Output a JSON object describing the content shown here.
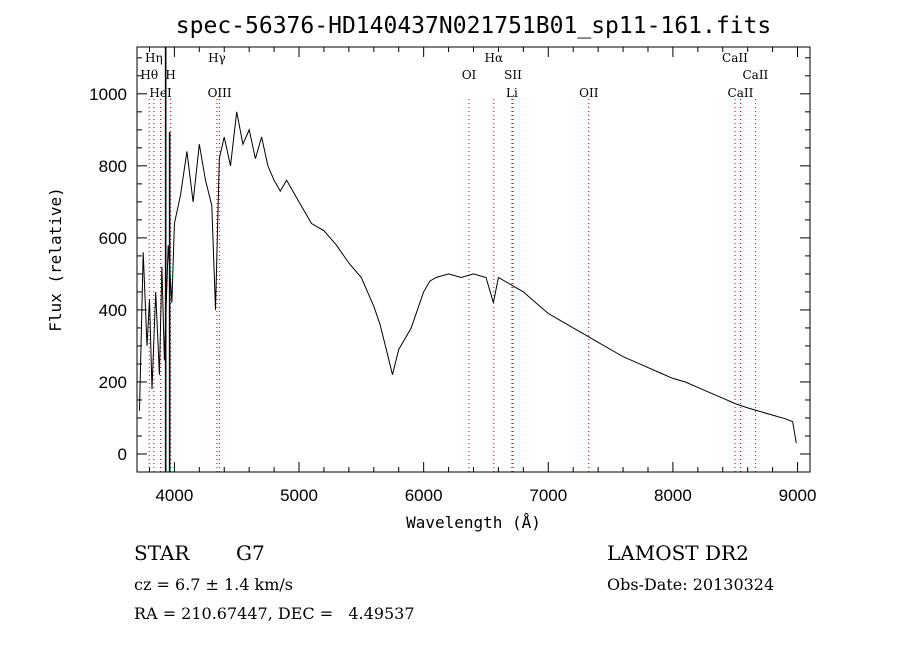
{
  "chart_data": {
    "type": "line",
    "title": "spec-56376-HD140437N021751B01_sp11-161.fits",
    "xlabel": "Wavelength (Å)",
    "ylabel": "Flux (relative)",
    "xlim": [
      3700,
      9100
    ],
    "ylim": [
      -50,
      1130
    ],
    "xticks": [
      4000,
      5000,
      6000,
      7000,
      8000,
      9000
    ],
    "yticks": [
      0,
      200,
      400,
      600,
      800,
      1000
    ],
    "grid": false,
    "spectral_lines": [
      {
        "label": "Hη",
        "wavelength": 3835,
        "row": 0
      },
      {
        "label": "Hθ",
        "wavelength": 3798,
        "row": 1
      },
      {
        "label": "HeI",
        "wavelength": 3889,
        "row": 2
      },
      {
        "label": "H",
        "wavelength": 3970,
        "row": 1
      },
      {
        "label": "Hγ",
        "wavelength": 4341,
        "row": 0
      },
      {
        "label": "OIII",
        "wavelength": 4363,
        "row": 2
      },
      {
        "label": "Hα",
        "wavelength": 6563,
        "row": 0
      },
      {
        "label": "OI",
        "wavelength": 6364,
        "row": 1
      },
      {
        "label": "SII",
        "wavelength": 6717,
        "row": 1
      },
      {
        "label": "Li",
        "wavelength": 6708,
        "row": 2
      },
      {
        "label": "OII",
        "wavelength": 7325,
        "row": 2
      },
      {
        "label": "CaII",
        "wavelength": 8498,
        "row": 0
      },
      {
        "label": "CaII",
        "wavelength": 8662,
        "row": 1
      },
      {
        "label": "CaII",
        "wavelength": 8542,
        "row": 2
      }
    ],
    "series": [
      {
        "values": [
          [
            3720,
            120
          ],
          [
            3750,
            560
          ],
          [
            3780,
            300
          ],
          [
            3800,
            430
          ],
          [
            3820,
            180
          ],
          [
            3850,
            450
          ],
          [
            3880,
            220
          ],
          [
            3900,
            520
          ],
          [
            3920,
            260
          ],
          [
            3950,
            580
          ],
          [
            3980,
            420
          ],
          [
            4000,
            640
          ],
          [
            4050,
            720
          ],
          [
            4100,
            840
          ],
          [
            4150,
            700
          ],
          [
            4200,
            860
          ],
          [
            4250,
            760
          ],
          [
            4300,
            690
          ],
          [
            4330,
            400
          ],
          [
            4360,
            820
          ],
          [
            4400,
            880
          ],
          [
            4450,
            800
          ],
          [
            4500,
            950
          ],
          [
            4550,
            860
          ],
          [
            4600,
            900
          ],
          [
            4650,
            820
          ],
          [
            4700,
            880
          ],
          [
            4750,
            800
          ],
          [
            4800,
            760
          ],
          [
            4850,
            730
          ],
          [
            4900,
            760
          ],
          [
            5000,
            700
          ],
          [
            5100,
            640
          ],
          [
            5200,
            620
          ],
          [
            5300,
            580
          ],
          [
            5400,
            530
          ],
          [
            5500,
            490
          ],
          [
            5600,
            410
          ],
          [
            5650,
            360
          ],
          [
            5700,
            290
          ],
          [
            5750,
            220
          ],
          [
            5800,
            290
          ],
          [
            5850,
            320
          ],
          [
            5900,
            350
          ],
          [
            5950,
            400
          ],
          [
            6000,
            450
          ],
          [
            6050,
            480
          ],
          [
            6100,
            490
          ],
          [
            6200,
            500
          ],
          [
            6300,
            490
          ],
          [
            6400,
            500
          ],
          [
            6500,
            490
          ],
          [
            6560,
            420
          ],
          [
            6600,
            490
          ],
          [
            6700,
            470
          ],
          [
            6800,
            450
          ],
          [
            6900,
            420
          ],
          [
            7000,
            390
          ],
          [
            7100,
            370
          ],
          [
            7200,
            350
          ],
          [
            7300,
            330
          ],
          [
            7400,
            310
          ],
          [
            7500,
            290
          ],
          [
            7600,
            270
          ],
          [
            7700,
            255
          ],
          [
            7800,
            240
          ],
          [
            7900,
            225
          ],
          [
            8000,
            210
          ],
          [
            8100,
            200
          ],
          [
            8200,
            185
          ],
          [
            8300,
            170
          ],
          [
            8400,
            155
          ],
          [
            8500,
            140
          ],
          [
            8600,
            128
          ],
          [
            8700,
            118
          ],
          [
            8800,
            108
          ],
          [
            8900,
            98
          ],
          [
            8960,
            90
          ],
          [
            8990,
            30
          ]
        ]
      }
    ]
  },
  "info": {
    "object_type": "STAR",
    "subclass": "G7",
    "survey": "LAMOST DR2",
    "cz": "cz = 6.7 ± 1.4 km/s",
    "obs_date": "Obs-Date: 20130324",
    "coords": "RA = 210.67447, DEC =   4.49537"
  },
  "colors": {
    "line_marker": "#cc0000",
    "spectrum": "#000000"
  }
}
